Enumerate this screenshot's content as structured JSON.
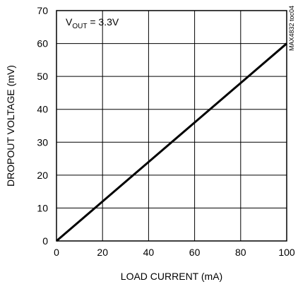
{
  "chart_data": {
    "type": "line",
    "title": "",
    "xlabel": "LOAD CURRENT (mA)",
    "ylabel": "DROPOUT VOLTAGE (mV)",
    "xlim": [
      0,
      100
    ],
    "ylim": [
      0,
      70
    ],
    "x_ticks": [
      "0",
      "20",
      "40",
      "60",
      "80",
      "100"
    ],
    "y_ticks": [
      "0",
      "10",
      "20",
      "30",
      "40",
      "50",
      "60",
      "70"
    ],
    "grid": true,
    "series": [
      {
        "x": [
          0,
          20,
          40,
          60,
          80,
          100
        ],
        "values": [
          0,
          12,
          24,
          36,
          48,
          60
        ]
      }
    ],
    "annotation": {
      "v": "V",
      "sub": "OUT",
      "rest": " = 3.3V"
    },
    "figure_id": "MAX4832 toc04",
    "colors": {
      "line": "#000000",
      "grid": "#000000",
      "background": "#ffffff"
    }
  }
}
